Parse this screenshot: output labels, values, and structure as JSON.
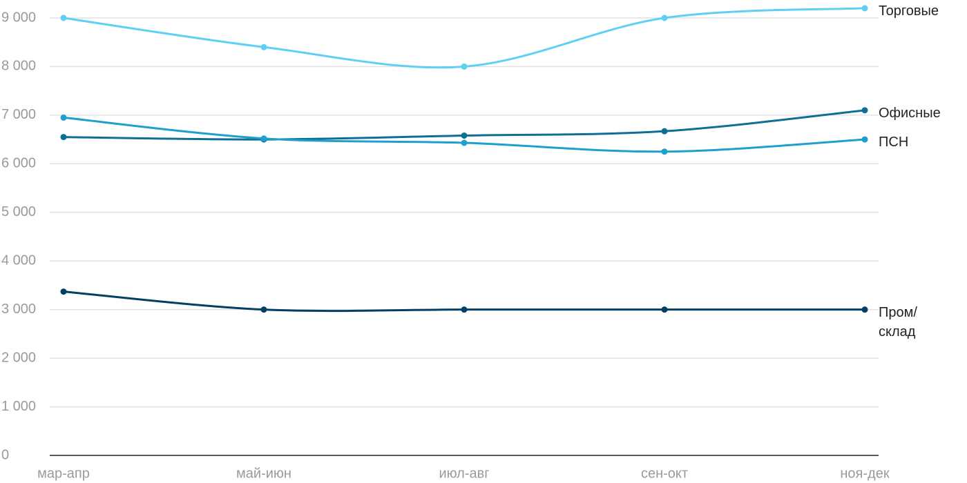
{
  "chart_data": {
    "type": "line",
    "categories": [
      "мар-апр",
      "май-июн",
      "июл-авг",
      "сен-окт",
      "ноя-дек"
    ],
    "series": [
      {
        "name": "Торговые",
        "color": "#5fd0f3",
        "values": [
          9000,
          8400,
          8000,
          9000,
          9200
        ]
      },
      {
        "name": "Офисные",
        "color": "#0d6f93",
        "values": [
          6550,
          6500,
          6580,
          6670,
          7100
        ]
      },
      {
        "name": "ПСН",
        "color": "#1f9fcb",
        "values": [
          6950,
          6520,
          6430,
          6250,
          6500
        ]
      },
      {
        "name": "Пром/ склад",
        "color": "#033f63",
        "values": [
          3370,
          3000,
          3000,
          3000,
          3000
        ]
      }
    ],
    "ylim": [
      0,
      9000
    ],
    "yticks": [
      0,
      {
        "value": 1000,
        "label": "1 000"
      },
      {
        "value": 2000,
        "label": "2 000"
      },
      {
        "value": 3000,
        "label": "3 000"
      },
      {
        "value": 4000,
        "label": "4 000"
      },
      {
        "value": 5000,
        "label": "5 000"
      },
      {
        "value": 6000,
        "label": "6 000"
      },
      {
        "value": 7000,
        "label": "7 000"
      },
      {
        "value": 8000,
        "label": "8 000"
      },
      {
        "value": 9000,
        "label": "9 000"
      }
    ],
    "grid": true
  }
}
